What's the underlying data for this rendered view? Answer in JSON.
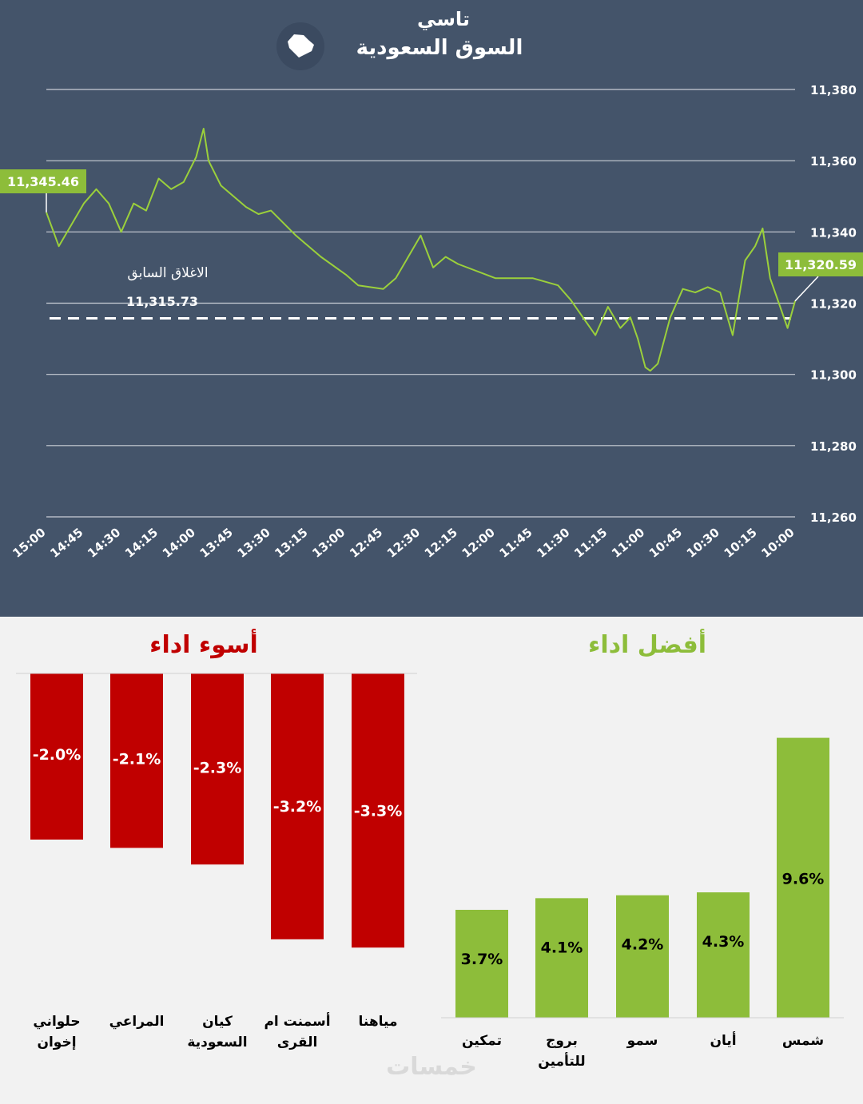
{
  "header": {
    "index_name": "تاسي",
    "market_name": "السوق السعودية",
    "map_icon": "saudi-map-icon"
  },
  "colors": {
    "background": "#44546a",
    "line": "#9bd03b",
    "positive": "#8dbd3a",
    "negative": "#c00000",
    "panel": "#f2f2f2"
  },
  "chart_data": [
    {
      "type": "line",
      "y_ticks": [
        "11,380",
        "11,360",
        "11,340",
        "11,320",
        "11,300",
        "11,280",
        "11,260"
      ],
      "x_ticks": [
        "15:00",
        "14:45",
        "14:30",
        "14:15",
        "14:00",
        "13:45",
        "13:30",
        "13:15",
        "13:00",
        "12:45",
        "12:30",
        "12:15",
        "12:00",
        "11:45",
        "11:30",
        "11:15",
        "11:00",
        "10:45",
        "10:30",
        "10:15",
        "10:00"
      ],
      "ylim": [
        11260,
        11380
      ],
      "x_axis_reversed": true,
      "grid": true,
      "start_value_label": "11,320.59",
      "end_value_label": "11,345.46",
      "previous_close_label": "الاغلاق السابق",
      "previous_close_value_label": "11,315.73",
      "previous_close": 11315.73,
      "series": [
        {
          "x": [
            "10:00",
            "10:03",
            "10:06",
            "10:10",
            "10:13",
            "10:16",
            "10:20",
            "10:25",
            "10:30",
            "10:35",
            "10:40",
            "10:45",
            "10:50",
            "10:55",
            "10:58",
            "11:00",
            "11:03",
            "11:06",
            "11:10",
            "11:15",
            "11:20",
            "11:25",
            "11:30",
            "11:35",
            "11:45",
            "12:00",
            "12:15",
            "12:20",
            "12:25",
            "12:30",
            "12:40",
            "12:45",
            "12:55",
            "13:00",
            "13:10",
            "13:20",
            "13:30",
            "13:35",
            "13:40",
            "13:50",
            "13:55",
            "13:57",
            "14:00",
            "14:05",
            "14:10",
            "14:15",
            "14:20",
            "14:25",
            "14:30",
            "14:35",
            "14:40",
            "14:45",
            "14:55",
            "15:00"
          ],
          "y": [
            11320.6,
            11313,
            11319,
            11327,
            11341,
            11336,
            11332,
            11311,
            11323,
            11324.5,
            11323,
            11324,
            11316,
            11303,
            11301,
            11302,
            11310,
            11316,
            11313,
            11319,
            11311,
            11316,
            11321,
            11325,
            11327,
            11327,
            11331,
            11333,
            11330,
            11339,
            11327,
            11324,
            11325,
            11328,
            11333,
            11339,
            11346,
            11345,
            11347,
            11353,
            11360,
            11369,
            11361,
            11354,
            11352,
            11355,
            11346,
            11348,
            11340,
            11348,
            11352,
            11348,
            11336,
            11345.5
          ]
        }
      ]
    },
    {
      "type": "bar",
      "title": "أفضل اداء",
      "categories": [
        "شمس",
        "أيان",
        "سمو",
        "بروج للتأمين",
        "تمكين"
      ],
      "values": [
        9.6,
        4.3,
        4.2,
        4.1,
        3.7
      ],
      "labels": [
        "9.6%",
        "4.3%",
        "4.2%",
        "4.1%",
        "3.7%"
      ]
    },
    {
      "type": "bar",
      "title": "أسوء اداء",
      "categories": [
        "مياهنا",
        "أسمنت ام القرى",
        "كيان السعودية",
        "المراعي",
        "حلواني إخوان"
      ],
      "values": [
        -3.3,
        -3.2,
        -2.3,
        -2.1,
        -2.0
      ],
      "labels": [
        "-3.3%",
        "-3.2%",
        "-2.3%",
        "-2.1%",
        "-2.0%"
      ]
    }
  ],
  "watermark": "خمسات"
}
